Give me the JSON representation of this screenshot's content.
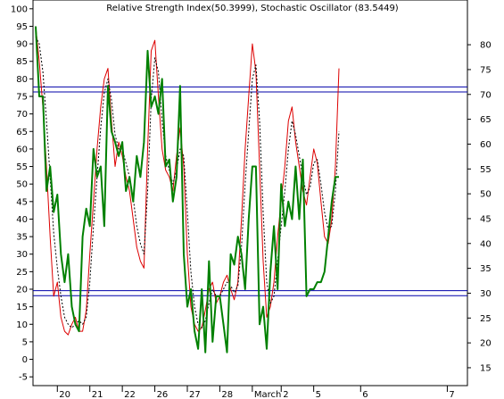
{
  "chart_data": {
    "type": "line",
    "title": "Relative Strength Index(50.3999), Stochastic Oscillator (83.5449)",
    "left_axis": {
      "ylim": [
        -7.5,
        102.5
      ],
      "ticks": [
        "100",
        "95",
        "90",
        "85",
        "80",
        "75",
        "70",
        "65",
        "60",
        "55",
        "50",
        "45",
        "40",
        "35",
        "30",
        "25",
        "20",
        "15",
        "10",
        "5",
        "0",
        "-5"
      ]
    },
    "right_axis": {
      "ylim": [
        11.4,
        89
      ],
      "ticks": [
        "80",
        "75",
        "70",
        "65",
        "60",
        "55",
        "50",
        "45",
        "40",
        "35",
        "30",
        "25",
        "20",
        "15"
      ]
    },
    "x_axis": {
      "xlim": [
        0,
        62
      ],
      "labels": [
        {
          "text": "20",
          "x": 3
        },
        {
          "text": "21",
          "x": 7.5
        },
        {
          "text": "22",
          "x": 12
        },
        {
          "text": "26",
          "x": 16.5
        },
        {
          "text": "27",
          "x": 21
        },
        {
          "text": "28",
          "x": 25.5
        },
        {
          "text": "March",
          "x": 30
        },
        {
          "text": "2",
          "x": 34
        },
        {
          "text": "5",
          "x": 38.5
        },
        {
          "text": "6",
          "x": 45
        },
        {
          "text": "7",
          "x": 57
        }
      ]
    },
    "reference_lines": [
      {
        "axis": "right",
        "value": 71.5,
        "color": "#0000aa"
      },
      {
        "axis": "right",
        "value": 70.5,
        "color": "#0000aa"
      },
      {
        "axis": "right",
        "value": 30.5,
        "color": "#0000aa"
      },
      {
        "axis": "right",
        "value": 29.5,
        "color": "#0000aa"
      }
    ],
    "grid": false,
    "series": [
      {
        "color": "#dd0000",
        "axis": "left",
        "x": [
          0,
          0.5,
          1,
          1.5,
          2,
          2.5,
          3,
          3.5,
          4,
          4.5,
          5,
          5.5,
          6,
          6.5,
          7,
          7.5,
          8,
          8.5,
          9,
          9.5,
          10,
          10.5,
          11,
          11.5,
          12,
          12.5,
          13,
          13.5,
          14,
          14.5,
          15,
          15.5,
          16,
          16.5,
          17,
          17.5,
          18,
          18.5,
          19,
          19.5,
          20,
          20.5,
          21,
          21.5,
          22,
          22.5,
          23,
          23.5,
          24,
          24.5,
          25,
          25.5,
          26,
          26.5,
          27,
          27.5,
          28,
          28.5,
          29,
          29.5,
          30,
          30.5,
          31,
          31.5,
          32,
          32.5,
          33,
          33.5,
          34,
          34.5,
          35,
          35.5,
          36,
          36.5,
          37,
          37.5,
          38,
          38.5,
          39,
          39.5,
          40,
          40.5,
          41,
          41.5,
          42
        ],
        "values": [
          95,
          85,
          72,
          55,
          35,
          18,
          22,
          12,
          8,
          7,
          10,
          12,
          8,
          8,
          14,
          30,
          45,
          60,
          72,
          80,
          83,
          68,
          55,
          62,
          58,
          52,
          48,
          40,
          32,
          28,
          26,
          60,
          88,
          91,
          75,
          60,
          54,
          52,
          48,
          58,
          66,
          55,
          30,
          15,
          10,
          8,
          9,
          14,
          20,
          22,
          16,
          18,
          22,
          24,
          20,
          17,
          22,
          40,
          60,
          75,
          90,
          82,
          55,
          28,
          12,
          15,
          22,
          35,
          45,
          55,
          68,
          72,
          62,
          55,
          48,
          44,
          52,
          60,
          56,
          45,
          35,
          33,
          40,
          55,
          83
        ]
      },
      {
        "color": "#000000",
        "axis": "left",
        "dashed": true,
        "x": [
          0,
          0.5,
          1,
          1.5,
          2,
          2.5,
          3,
          3.5,
          4,
          4.5,
          5,
          5.5,
          6,
          6.5,
          7,
          7.5,
          8,
          8.5,
          9,
          9.5,
          10,
          10.5,
          11,
          11.5,
          12,
          12.5,
          13,
          13.5,
          14,
          14.5,
          15,
          15.5,
          16,
          16.5,
          17,
          17.5,
          18,
          18.5,
          19,
          19.5,
          20,
          20.5,
          21,
          21.5,
          22,
          22.5,
          23,
          23.5,
          24,
          24.5,
          25,
          25.5,
          26,
          26.5,
          27,
          27.5,
          28,
          28.5,
          29,
          29.5,
          30,
          30.5,
          31,
          31.5,
          32,
          32.5,
          33,
          33.5,
          34,
          34.5,
          35,
          35.5,
          36,
          36.5,
          37,
          37.5,
          38,
          38.5,
          39,
          39.5,
          40,
          40.5,
          41,
          41.5,
          42
        ],
        "values": [
          92,
          90,
          82,
          68,
          52,
          36,
          26,
          18,
          12,
          10,
          9,
          10,
          11,
          10,
          12,
          22,
          38,
          52,
          66,
          76,
          80,
          74,
          64,
          60,
          60,
          56,
          52,
          46,
          38,
          33,
          30,
          48,
          74,
          86,
          82,
          68,
          58,
          54,
          50,
          54,
          60,
          58,
          42,
          25,
          15,
          10,
          9,
          11,
          16,
          20,
          18,
          18,
          20,
          22,
          21,
          19,
          21,
          32,
          50,
          65,
          80,
          84,
          68,
          42,
          22,
          16,
          18,
          28,
          38,
          48,
          60,
          68,
          64,
          58,
          52,
          47,
          49,
          56,
          57,
          50,
          42,
          37,
          38,
          48,
          65
        ]
      },
      {
        "color": "#008000",
        "axis": "left",
        "bold": true,
        "x": [
          0,
          0.5,
          1,
          1.5,
          2,
          2.5,
          3,
          3.5,
          4,
          4.5,
          5,
          5.5,
          6,
          6.5,
          7,
          7.5,
          8,
          8.5,
          9,
          9.5,
          10,
          10.5,
          11,
          11.5,
          12,
          12.5,
          13,
          13.5,
          14,
          14.5,
          15,
          15.5,
          16,
          16.5,
          17,
          17.5,
          18,
          18.5,
          19,
          19.5,
          20,
          20.5,
          21,
          21.5,
          22,
          22.5,
          23,
          23.5,
          24,
          24.5,
          25,
          25.5,
          26,
          26.5,
          27,
          27.5,
          28,
          28.5,
          29,
          29.5,
          30,
          30.5,
          31,
          31.5,
          32,
          32.5,
          33,
          33.5,
          34,
          34.5,
          35,
          35.5,
          36,
          36.5,
          37,
          37.5,
          38,
          38.5,
          39,
          39.5,
          40,
          40.5,
          41,
          41.5,
          42
        ],
        "values": [
          95,
          75,
          75,
          48,
          55,
          42,
          47,
          30,
          22,
          30,
          15,
          10,
          8,
          35,
          43,
          38,
          60,
          52,
          55,
          38,
          78,
          65,
          62,
          58,
          62,
          48,
          52,
          45,
          58,
          52,
          62,
          88,
          72,
          75,
          70,
          80,
          55,
          57,
          45,
          52,
          78,
          30,
          15,
          20,
          8,
          3,
          20,
          2,
          28,
          5,
          18,
          18,
          10,
          2,
          30,
          27,
          35,
          30,
          20,
          40,
          55,
          55,
          10,
          15,
          3,
          25,
          38,
          20,
          50,
          38,
          45,
          40,
          55,
          40,
          57,
          18,
          20,
          20,
          22,
          22,
          25,
          35,
          45,
          52,
          52
        ]
      }
    ]
  }
}
